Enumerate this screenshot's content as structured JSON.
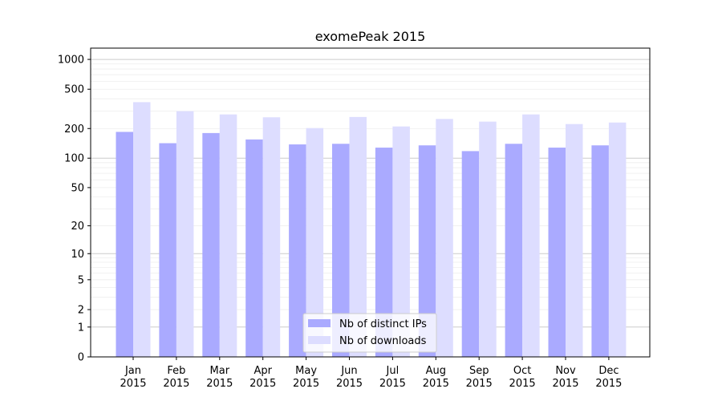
{
  "chart_data": {
    "type": "bar",
    "title": "exomePeak 2015",
    "xlabel": "",
    "ylabel": "",
    "y_scale": "symlog",
    "ylim": [
      0,
      1300
    ],
    "y_ticks": [
      0,
      1,
      2,
      5,
      10,
      20,
      50,
      100,
      200,
      500,
      1000
    ],
    "grid": true,
    "legend_position": "bottom-center",
    "categories": [
      {
        "month": "Jan",
        "year": "2015"
      },
      {
        "month": "Feb",
        "year": "2015"
      },
      {
        "month": "Mar",
        "year": "2015"
      },
      {
        "month": "Apr",
        "year": "2015"
      },
      {
        "month": "May",
        "year": "2015"
      },
      {
        "month": "Jun",
        "year": "2015"
      },
      {
        "month": "Jul",
        "year": "2015"
      },
      {
        "month": "Aug",
        "year": "2015"
      },
      {
        "month": "Sep",
        "year": "2015"
      },
      {
        "month": "Oct",
        "year": "2015"
      },
      {
        "month": "Nov",
        "year": "2015"
      },
      {
        "month": "Dec",
        "year": "2015"
      }
    ],
    "series": [
      {
        "name": "Nb of distinct IPs",
        "color": "#aaaaff",
        "values": [
          185,
          142,
          180,
          155,
          138,
          140,
          128,
          135,
          118,
          140,
          128,
          135
        ]
      },
      {
        "name": "Nb of downloads",
        "color": "#ddddff",
        "values": [
          370,
          300,
          278,
          260,
          202,
          262,
          210,
          250,
          235,
          278,
          222,
          230
        ]
      }
    ]
  }
}
